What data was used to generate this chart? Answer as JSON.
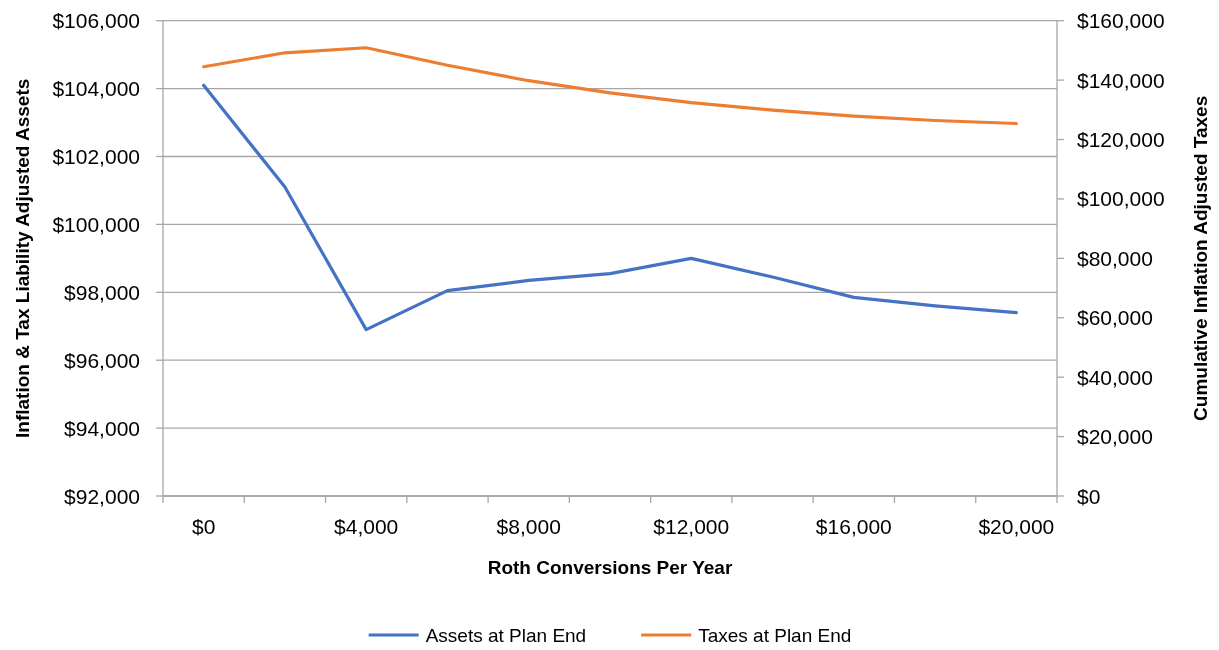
{
  "chart_data": {
    "type": "line",
    "xlabel": "Roth Conversions Per Year",
    "ylabel": "Inflation & Tax Liability Adjusted Assets",
    "y2label": "Cumulative Inflation Adjusted Taxes",
    "categories": [
      "$0",
      null,
      "$4,000",
      null,
      "$8,000",
      null,
      "$12,000",
      null,
      "$16,000",
      null,
      "$20,000"
    ],
    "series": [
      {
        "name": "Assets at Plan End",
        "color": "#4472c4",
        "values": [
          104100,
          101100,
          96900,
          98050,
          98350,
          98550,
          99000,
          98450,
          97850,
          97600,
          97400
        ]
      },
      {
        "name": "Taxes at Plan End",
        "color": "#ed7d31",
        "axis": "y2",
        "values": [
          144500,
          149200,
          150900,
          145000,
          139800,
          135700,
          132400,
          129900,
          127900,
          126400,
          125400
        ]
      }
    ],
    "ylim": [
      92000,
      106000
    ],
    "yticks": [
      {
        "value": 92000,
        "label": "$92,000"
      },
      {
        "value": 94000,
        "label": "$94,000"
      },
      {
        "value": 96000,
        "label": "$96,000"
      },
      {
        "value": 98000,
        "label": "$98,000"
      },
      {
        "value": 100000,
        "label": "$100,000"
      },
      {
        "value": 102000,
        "label": "$102,000"
      },
      {
        "value": 104000,
        "label": "$104,000"
      },
      {
        "value": 106000,
        "label": "$106,000"
      }
    ],
    "y2lim": [
      0,
      160000
    ],
    "y2ticks": [
      {
        "value": 0,
        "label": "$0"
      },
      {
        "value": 20000,
        "label": "$20,000"
      },
      {
        "value": 40000,
        "label": "$40,000"
      },
      {
        "value": 60000,
        "label": "$60,000"
      },
      {
        "value": 80000,
        "label": "$80,000"
      },
      {
        "value": 100000,
        "label": "$100,000"
      },
      {
        "value": 120000,
        "label": "$120,000"
      },
      {
        "value": 140000,
        "label": "$140,000"
      },
      {
        "value": 160000,
        "label": "$160,000"
      }
    ],
    "grid": "y",
    "legend": "bottom"
  }
}
